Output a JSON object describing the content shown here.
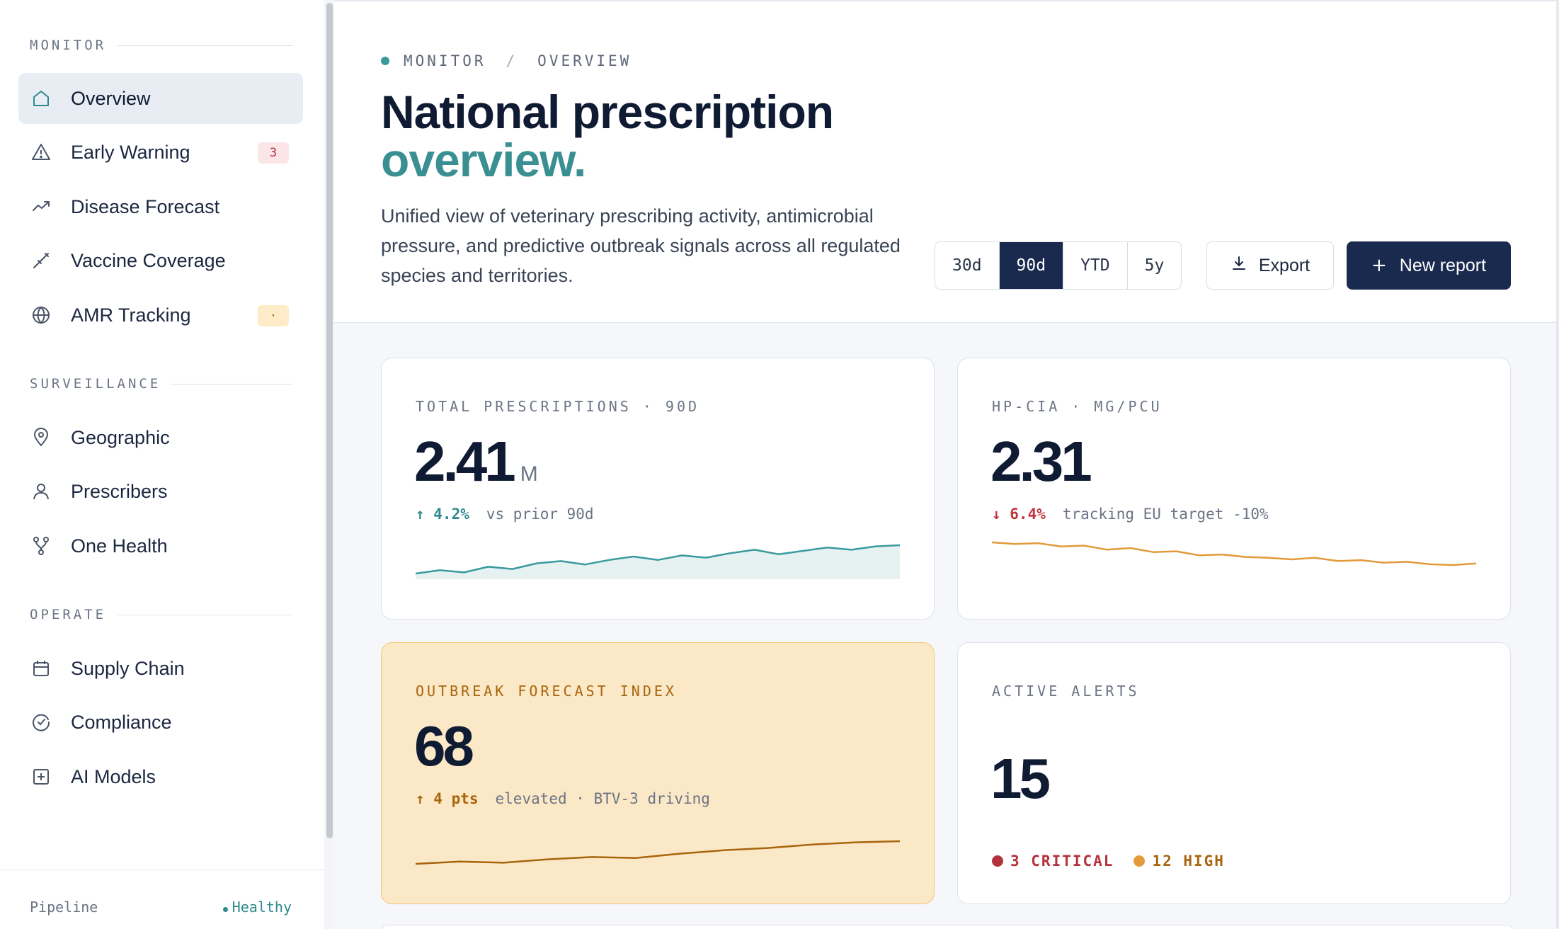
{
  "sidebar": {
    "sections": [
      {
        "label": "MONITOR"
      },
      {
        "label": "SURVEILLANCE"
      },
      {
        "label": "OPERATE"
      }
    ],
    "items": [
      {
        "label": "Overview",
        "icon": "home-icon",
        "active": true
      },
      {
        "label": "Early Warning",
        "icon": "warning-icon",
        "badge": "3"
      },
      {
        "label": "Disease Forecast",
        "icon": "trending-up-icon"
      },
      {
        "label": "Vaccine Coverage",
        "icon": "syringe-icon"
      },
      {
        "label": "AMR Tracking",
        "icon": "globe-icon",
        "badge": "·"
      },
      {
        "label": "Geographic",
        "icon": "map-pin-icon"
      },
      {
        "label": "Prescribers",
        "icon": "user-icon"
      },
      {
        "label": "One Health",
        "icon": "branch-icon"
      },
      {
        "label": "Supply Chain",
        "icon": "calendar-icon"
      },
      {
        "label": "Compliance",
        "icon": "check-circle-icon"
      },
      {
        "label": "AI Models",
        "icon": "plus-square-icon"
      }
    ],
    "footer": {
      "label": "Pipeline",
      "status": "Healthy"
    }
  },
  "header": {
    "breadcrumb": [
      "MONITOR",
      "/",
      "OVERVIEW"
    ],
    "title_line1": "National prescription",
    "title_line2": "overview.",
    "subtitle": "Unified view of veterinary prescribing activity, antimicrobial pressure, and predictive outbreak signals across all regulated species and territories.",
    "ranges": [
      "30d",
      "90d",
      "YTD",
      "5y"
    ],
    "active_range": "90d",
    "export_label": "Export",
    "new_report_label": "New report"
  },
  "cards": {
    "prescriptions": {
      "label": "TOTAL PRESCRIPTIONS · 90D",
      "value": "2.41",
      "unit": "M",
      "delta": "↑ 4.2%",
      "note": "vs prior 90d"
    },
    "hpcia": {
      "label": "HP-CIA · MG/PCU",
      "value": "2.31",
      "delta": "↓ 6.4%",
      "note": "tracking EU target -10%"
    },
    "outbreak": {
      "label": "OUTBREAK FORECAST INDEX",
      "value": "68",
      "delta": "↑ 4 pts",
      "note": "elevated · BTV-3 driving"
    },
    "alerts": {
      "label": "ACTIVE ALERTS",
      "value": "15",
      "critical": "3 CRITICAL",
      "high": "12 HIGH"
    }
  },
  "colors": {
    "accent_teal": "#3a8f93",
    "navy": "#1a2a4f",
    "critical": "#b3323e",
    "high": "#e29a3b",
    "warning_bg": "#fbe8c6"
  },
  "chart_data": [
    {
      "type": "area",
      "series": [
        {
          "values": [
            2.25,
            2.28,
            2.26,
            2.31,
            2.29,
            2.34,
            2.36,
            2.33,
            2.37,
            2.4,
            2.37,
            2.41,
            2.39,
            2.43,
            2.46,
            2.42,
            2.45,
            2.48,
            2.46,
            2.49,
            2.5
          ]
        }
      ],
      "color": "#3a9a9e"
    },
    {
      "type": "line",
      "series": [
        {
          "values": [
            2.62,
            2.6,
            2.61,
            2.57,
            2.58,
            2.53,
            2.55,
            2.5,
            2.51,
            2.46,
            2.47,
            2.44,
            2.43,
            2.41,
            2.43,
            2.39,
            2.4,
            2.37,
            2.38,
            2.35,
            2.34,
            2.36
          ]
        }
      ],
      "color": "#e29a3b"
    },
    {
      "type": "line",
      "series": [
        {
          "values": [
            60,
            61,
            60.5,
            62,
            63,
            62.6,
            64.5,
            66,
            67,
            68.5,
            69.5,
            70
          ]
        }
      ],
      "color": "#a8650e"
    }
  ]
}
